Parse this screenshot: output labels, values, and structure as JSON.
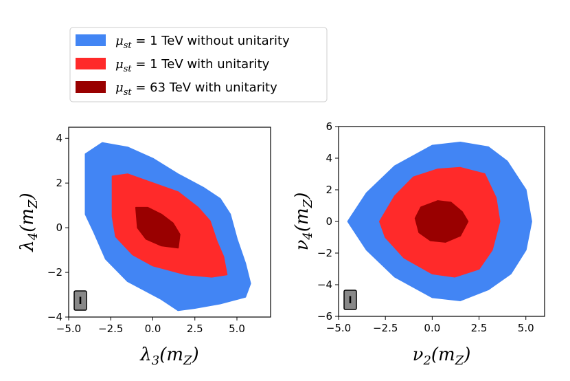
{
  "colors": {
    "blue": "#4285f4",
    "red": "#ff2a2a",
    "darkred": "#990000",
    "badge": "#888888"
  },
  "legend": {
    "entries": [
      {
        "sym": "μ",
        "sub": "st",
        "rest": " = 1 TeV without unitarity",
        "color": "#4285f4"
      },
      {
        "sym": "μ",
        "sub": "st",
        "rest": " = 1 TeV with unitarity",
        "color": "#ff2a2a"
      },
      {
        "sym": "μ",
        "sub": "st",
        "rest": " = 63 TeV with unitarity",
        "color": "#990000"
      }
    ]
  },
  "chart_data": [
    {
      "type": "area",
      "id": "left",
      "xlabel": {
        "sym": "λ",
        "sub": "3",
        "arg": "(m",
        "argsub": "Z",
        "close": ")"
      },
      "ylabel": {
        "sym": "λ",
        "sub": "4",
        "arg": "(m",
        "argsub": "Z",
        "close": ")"
      },
      "xlim": [
        -5,
        7
      ],
      "ylim": [
        -4,
        4.5
      ],
      "xticks": [
        -5.0,
        -2.5,
        0.0,
        2.5,
        5.0
      ],
      "xtick_labels": [
        "−5.0",
        "−2.5",
        "0.0",
        "2.5",
        "5.0"
      ],
      "yticks": [
        -4,
        -2,
        0,
        2,
        4
      ],
      "ytick_labels": [
        "−4",
        "−2",
        "0",
        "2",
        "4"
      ],
      "badge": "I",
      "series": [
        {
          "name": "μst = 1 TeV without unitarity",
          "color": "#4285f4",
          "points": [
            [
              -4.0,
              3.3
            ],
            [
              -3.0,
              3.8
            ],
            [
              -1.5,
              3.6
            ],
            [
              0,
              3.1
            ],
            [
              1.5,
              2.4
            ],
            [
              3,
              1.8
            ],
            [
              4,
              1.3
            ],
            [
              4.6,
              0.6
            ],
            [
              5.0,
              -0.5
            ],
            [
              5.5,
              -1.6
            ],
            [
              5.8,
              -2.5
            ],
            [
              5.5,
              -3.1
            ],
            [
              4.0,
              -3.4
            ],
            [
              2.5,
              -3.6
            ],
            [
              1.5,
              -3.7
            ],
            [
              0.5,
              -3.2
            ],
            [
              -1.5,
              -2.4
            ],
            [
              -2.8,
              -1.4
            ],
            [
              -3.5,
              -0.2
            ],
            [
              -4.0,
              0.6
            ],
            [
              -4.0,
              2.5
            ]
          ]
        },
        {
          "name": "μst = 1 TeV with unitarity",
          "color": "#ff2a2a",
          "points": [
            [
              -2.4,
              2.3
            ],
            [
              -1.5,
              2.4
            ],
            [
              0,
              2.0
            ],
            [
              1.5,
              1.6
            ],
            [
              2.7,
              0.9
            ],
            [
              3.4,
              0.3
            ],
            [
              3.8,
              -0.6
            ],
            [
              4.2,
              -1.3
            ],
            [
              4.4,
              -2.1
            ],
            [
              3.5,
              -2.2
            ],
            [
              2.0,
              -2.1
            ],
            [
              1.0,
              -1.9
            ],
            [
              0,
              -1.7
            ],
            [
              -1.2,
              -1.2
            ],
            [
              -2.2,
              -0.4
            ],
            [
              -2.4,
              0.5
            ]
          ]
        },
        {
          "name": "μst = 63 TeV with unitarity",
          "color": "#990000",
          "points": [
            [
              -1.0,
              0.9
            ],
            [
              -0.3,
              0.9
            ],
            [
              0.5,
              0.6
            ],
            [
              1.2,
              0.2
            ],
            [
              1.6,
              -0.3
            ],
            [
              1.5,
              -0.9
            ],
            [
              0.5,
              -0.8
            ],
            [
              -0.4,
              -0.5
            ],
            [
              -0.9,
              0.0
            ]
          ]
        }
      ]
    },
    {
      "type": "area",
      "id": "right",
      "xlabel": {
        "sym": "ν",
        "sub": "2",
        "arg": "(m",
        "argsub": "Z",
        "close": ")"
      },
      "ylabel": {
        "sym": "ν",
        "sub": "4",
        "arg": "(m",
        "argsub": "Z",
        "close": ")"
      },
      "xlim": [
        -5,
        6
      ],
      "ylim": [
        -6,
        6
      ],
      "xticks": [
        -5.0,
        -2.5,
        0.0,
        2.5,
        5.0
      ],
      "xtick_labels": [
        "−5.0",
        "−2.5",
        "0.0",
        "2.5",
        "5.0"
      ],
      "yticks": [
        -6,
        -4,
        -2,
        0,
        2,
        4,
        6
      ],
      "ytick_labels": [
        "−6",
        "−4",
        "−2",
        "0",
        "2",
        "4",
        "6"
      ],
      "badge": "I",
      "series": [
        {
          "name": "μst = 1 TeV without unitarity",
          "color": "#4285f4",
          "points": [
            [
              -4.5,
              0.0
            ],
            [
              -3.5,
              1.8
            ],
            [
              -2.0,
              3.5
            ],
            [
              0,
              4.8
            ],
            [
              1.5,
              5.0
            ],
            [
              3.0,
              4.7
            ],
            [
              4.0,
              3.8
            ],
            [
              5.0,
              2.0
            ],
            [
              5.3,
              0.0
            ],
            [
              5.0,
              -1.8
            ],
            [
              4.2,
              -3.3
            ],
            [
              3.0,
              -4.3
            ],
            [
              1.5,
              -5.0
            ],
            [
              0,
              -4.8
            ],
            [
              -2.0,
              -3.5
            ],
            [
              -3.5,
              -1.8
            ]
          ]
        },
        {
          "name": "μst = 1 TeV with unitarity",
          "color": "#ff2a2a",
          "points": [
            [
              -2.8,
              0.0
            ],
            [
              -2.0,
              1.6
            ],
            [
              -1.0,
              2.8
            ],
            [
              0.3,
              3.3
            ],
            [
              1.5,
              3.4
            ],
            [
              2.8,
              3.0
            ],
            [
              3.4,
              1.5
            ],
            [
              3.6,
              0.0
            ],
            [
              3.2,
              -1.8
            ],
            [
              2.5,
              -3.0
            ],
            [
              1.2,
              -3.5
            ],
            [
              0,
              -3.3
            ],
            [
              -1.5,
              -2.3
            ],
            [
              -2.5,
              -1.0
            ]
          ]
        },
        {
          "name": "μst = 63 TeV with unitarity",
          "color": "#990000",
          "points": [
            [
              -0.9,
              0.2
            ],
            [
              -0.6,
              0.9
            ],
            [
              0.3,
              1.3
            ],
            [
              1.0,
              1.2
            ],
            [
              1.6,
              0.6
            ],
            [
              1.9,
              0.0
            ],
            [
              1.5,
              -0.9
            ],
            [
              0.7,
              -1.3
            ],
            [
              -0.1,
              -1.2
            ],
            [
              -0.7,
              -0.7
            ]
          ]
        }
      ]
    }
  ]
}
